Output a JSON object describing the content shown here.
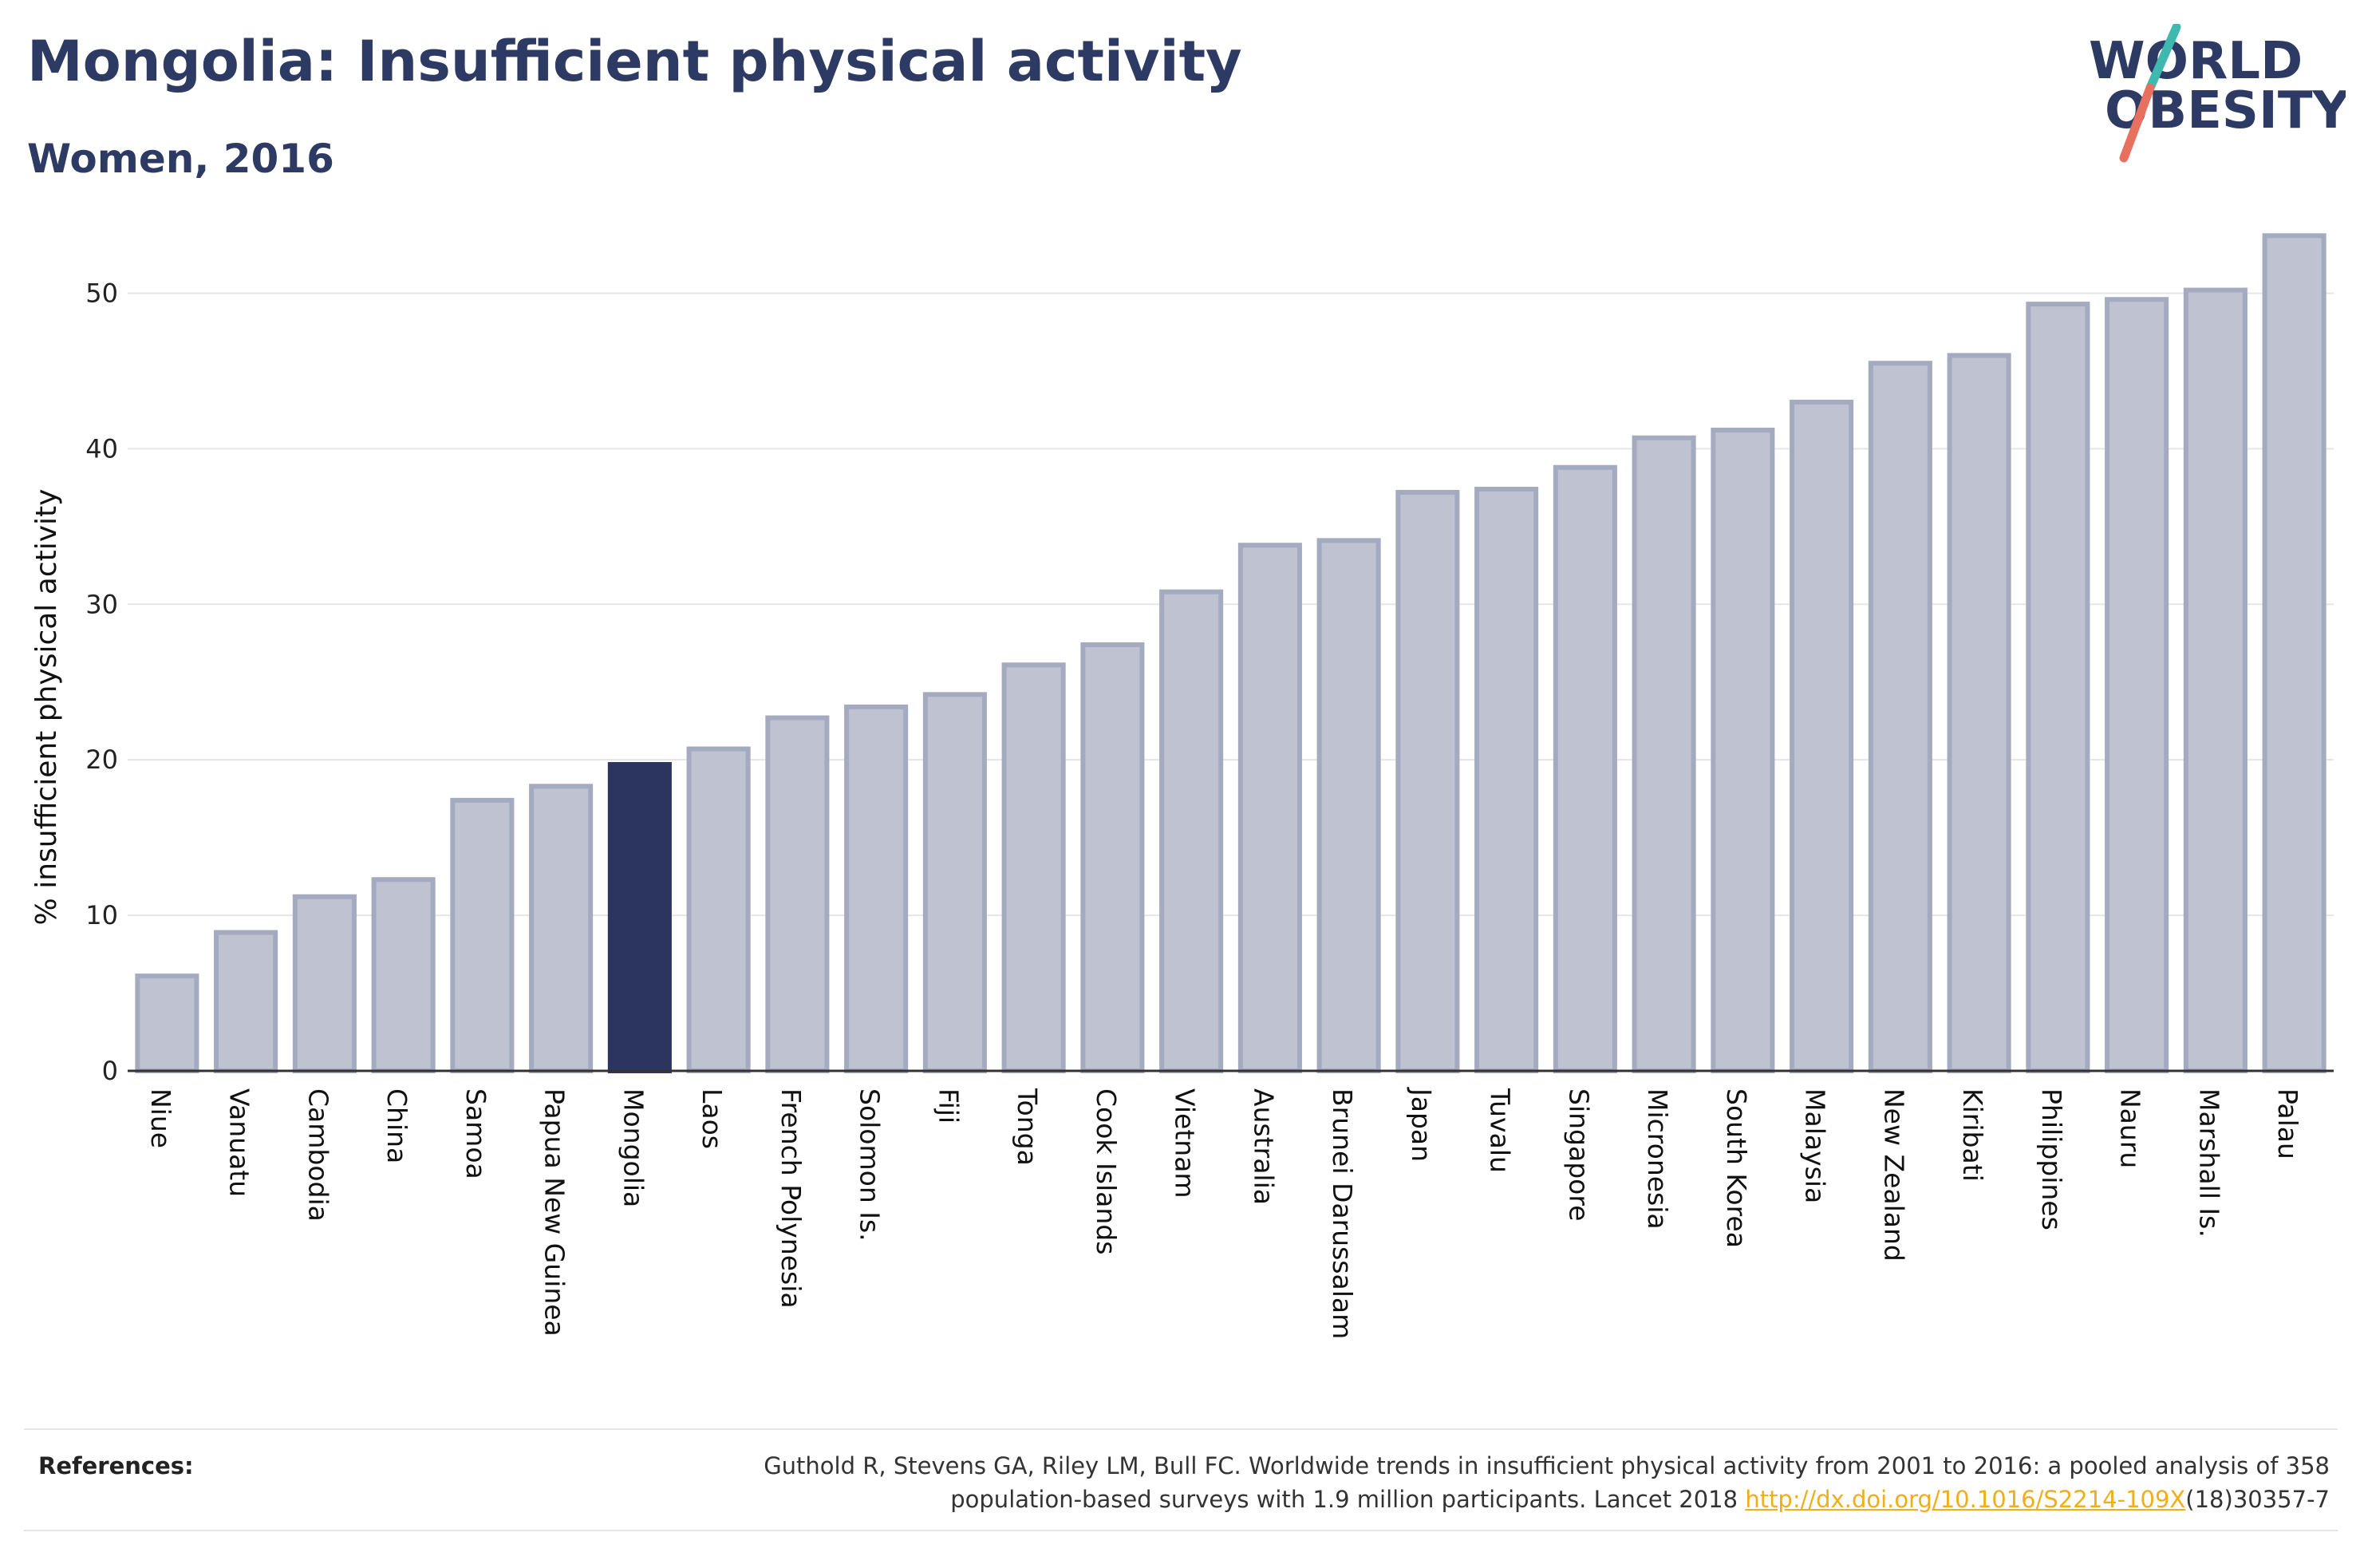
{
  "header": {
    "title": "Mongolia: Insufficient physical activity",
    "subtitle": "Women, 2016"
  },
  "logo": {
    "line1": "WORLD",
    "line2": "OBESITY",
    "text_color": "#2d3a63",
    "slash_top_color": "#3fb8b0",
    "slash_bottom_color": "#e8705e"
  },
  "colors": {
    "bar_fill": "#bfc3d1",
    "bar_stroke": "#a4aac0",
    "highlight_fill": "#2b3560",
    "axis": "#333333",
    "grid": "#e6e6e6",
    "text": "#2d3a63"
  },
  "chart_data": {
    "type": "bar",
    "title": "Mongolia: Insufficient physical activity",
    "subtitle": "Women, 2016",
    "xlabel": "",
    "ylabel": "% insufficient physical activity",
    "ylim": [
      0,
      55
    ],
    "yticks": [
      0,
      10,
      20,
      30,
      40,
      50
    ],
    "grid": true,
    "highlight": "Mongolia",
    "categories": [
      "Niue",
      "Vanuatu",
      "Cambodia",
      "China",
      "Samoa",
      "Papua New Guinea",
      "Mongolia",
      "Laos",
      "French Polynesia",
      "Solomon Is.",
      "Fiji",
      "Tonga",
      "Cook Islands",
      "Vietnam",
      "Australia",
      "Brunei Darussalam",
      "Japan",
      "Tuvalu",
      "Singapore",
      "Micronesia",
      "South Korea",
      "Malaysia",
      "New Zealand",
      "Kiribati",
      "Philippines",
      "Nauru",
      "Marshall Is.",
      "Palau"
    ],
    "values": [
      6.1,
      8.9,
      11.2,
      12.3,
      17.4,
      18.3,
      19.7,
      20.7,
      22.7,
      23.4,
      24.2,
      26.1,
      27.4,
      30.8,
      33.8,
      34.1,
      37.2,
      37.4,
      38.8,
      40.7,
      41.2,
      43.0,
      45.5,
      46.0,
      49.3,
      49.6,
      50.2,
      53.7
    ]
  },
  "references": {
    "label": "References:",
    "text_line1": "Guthold R, Stevens GA, Riley LM, Bull FC. Worldwide trends in insufficient physical activity from 2001 to 2016: a pooled analysis of 358",
    "text_line2_pre": "population-based surveys with 1.9 million participants. Lancet 2018 ",
    "link": "http://dx.doi.org/10.1016/S2214-109X",
    "text_line2_post": "(18)30357-7"
  }
}
